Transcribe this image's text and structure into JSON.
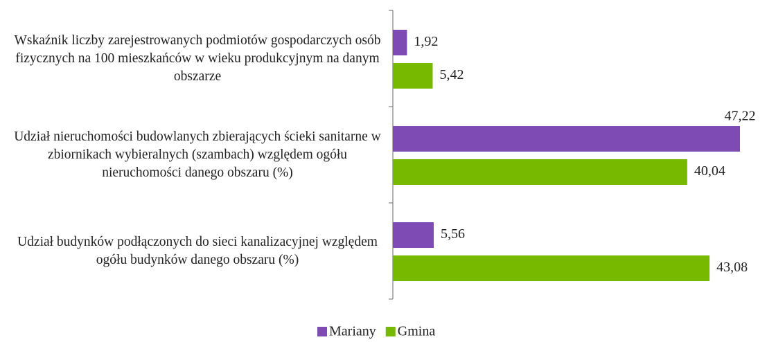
{
  "chart_data": {
    "type": "bar",
    "orientation": "horizontal",
    "categories": [
      "Wskaźnik liczby zarejestrowanych podmiotów gospodarczych osób fizycznych na 100 mieszkańców w wieku produkcyjnym na danym obszarze",
      "Udział nieruchomości budowlanych zbierających ścieki sanitarne w zbiornikach wybieralnych (szambach) względem ogółu nieruchomości danego obszaru (%)",
      "Udział budynków podłączonych do sieci kanalizacyjnej względem ogółu budynków danego obszaru (%)"
    ],
    "series": [
      {
        "name": "Mariany",
        "color": "#7e4bb4",
        "values": [
          1.92,
          47.22,
          5.56
        ],
        "value_labels": [
          "1,92",
          "47,22",
          "5,56"
        ]
      },
      {
        "name": "Gmina",
        "color": "#76b900",
        "values": [
          5.42,
          40.04,
          43.08
        ],
        "value_labels": [
          "5,42",
          "40,04",
          "43,08"
        ]
      }
    ],
    "xlim": [
      0,
      50
    ],
    "legend": "bottom"
  }
}
